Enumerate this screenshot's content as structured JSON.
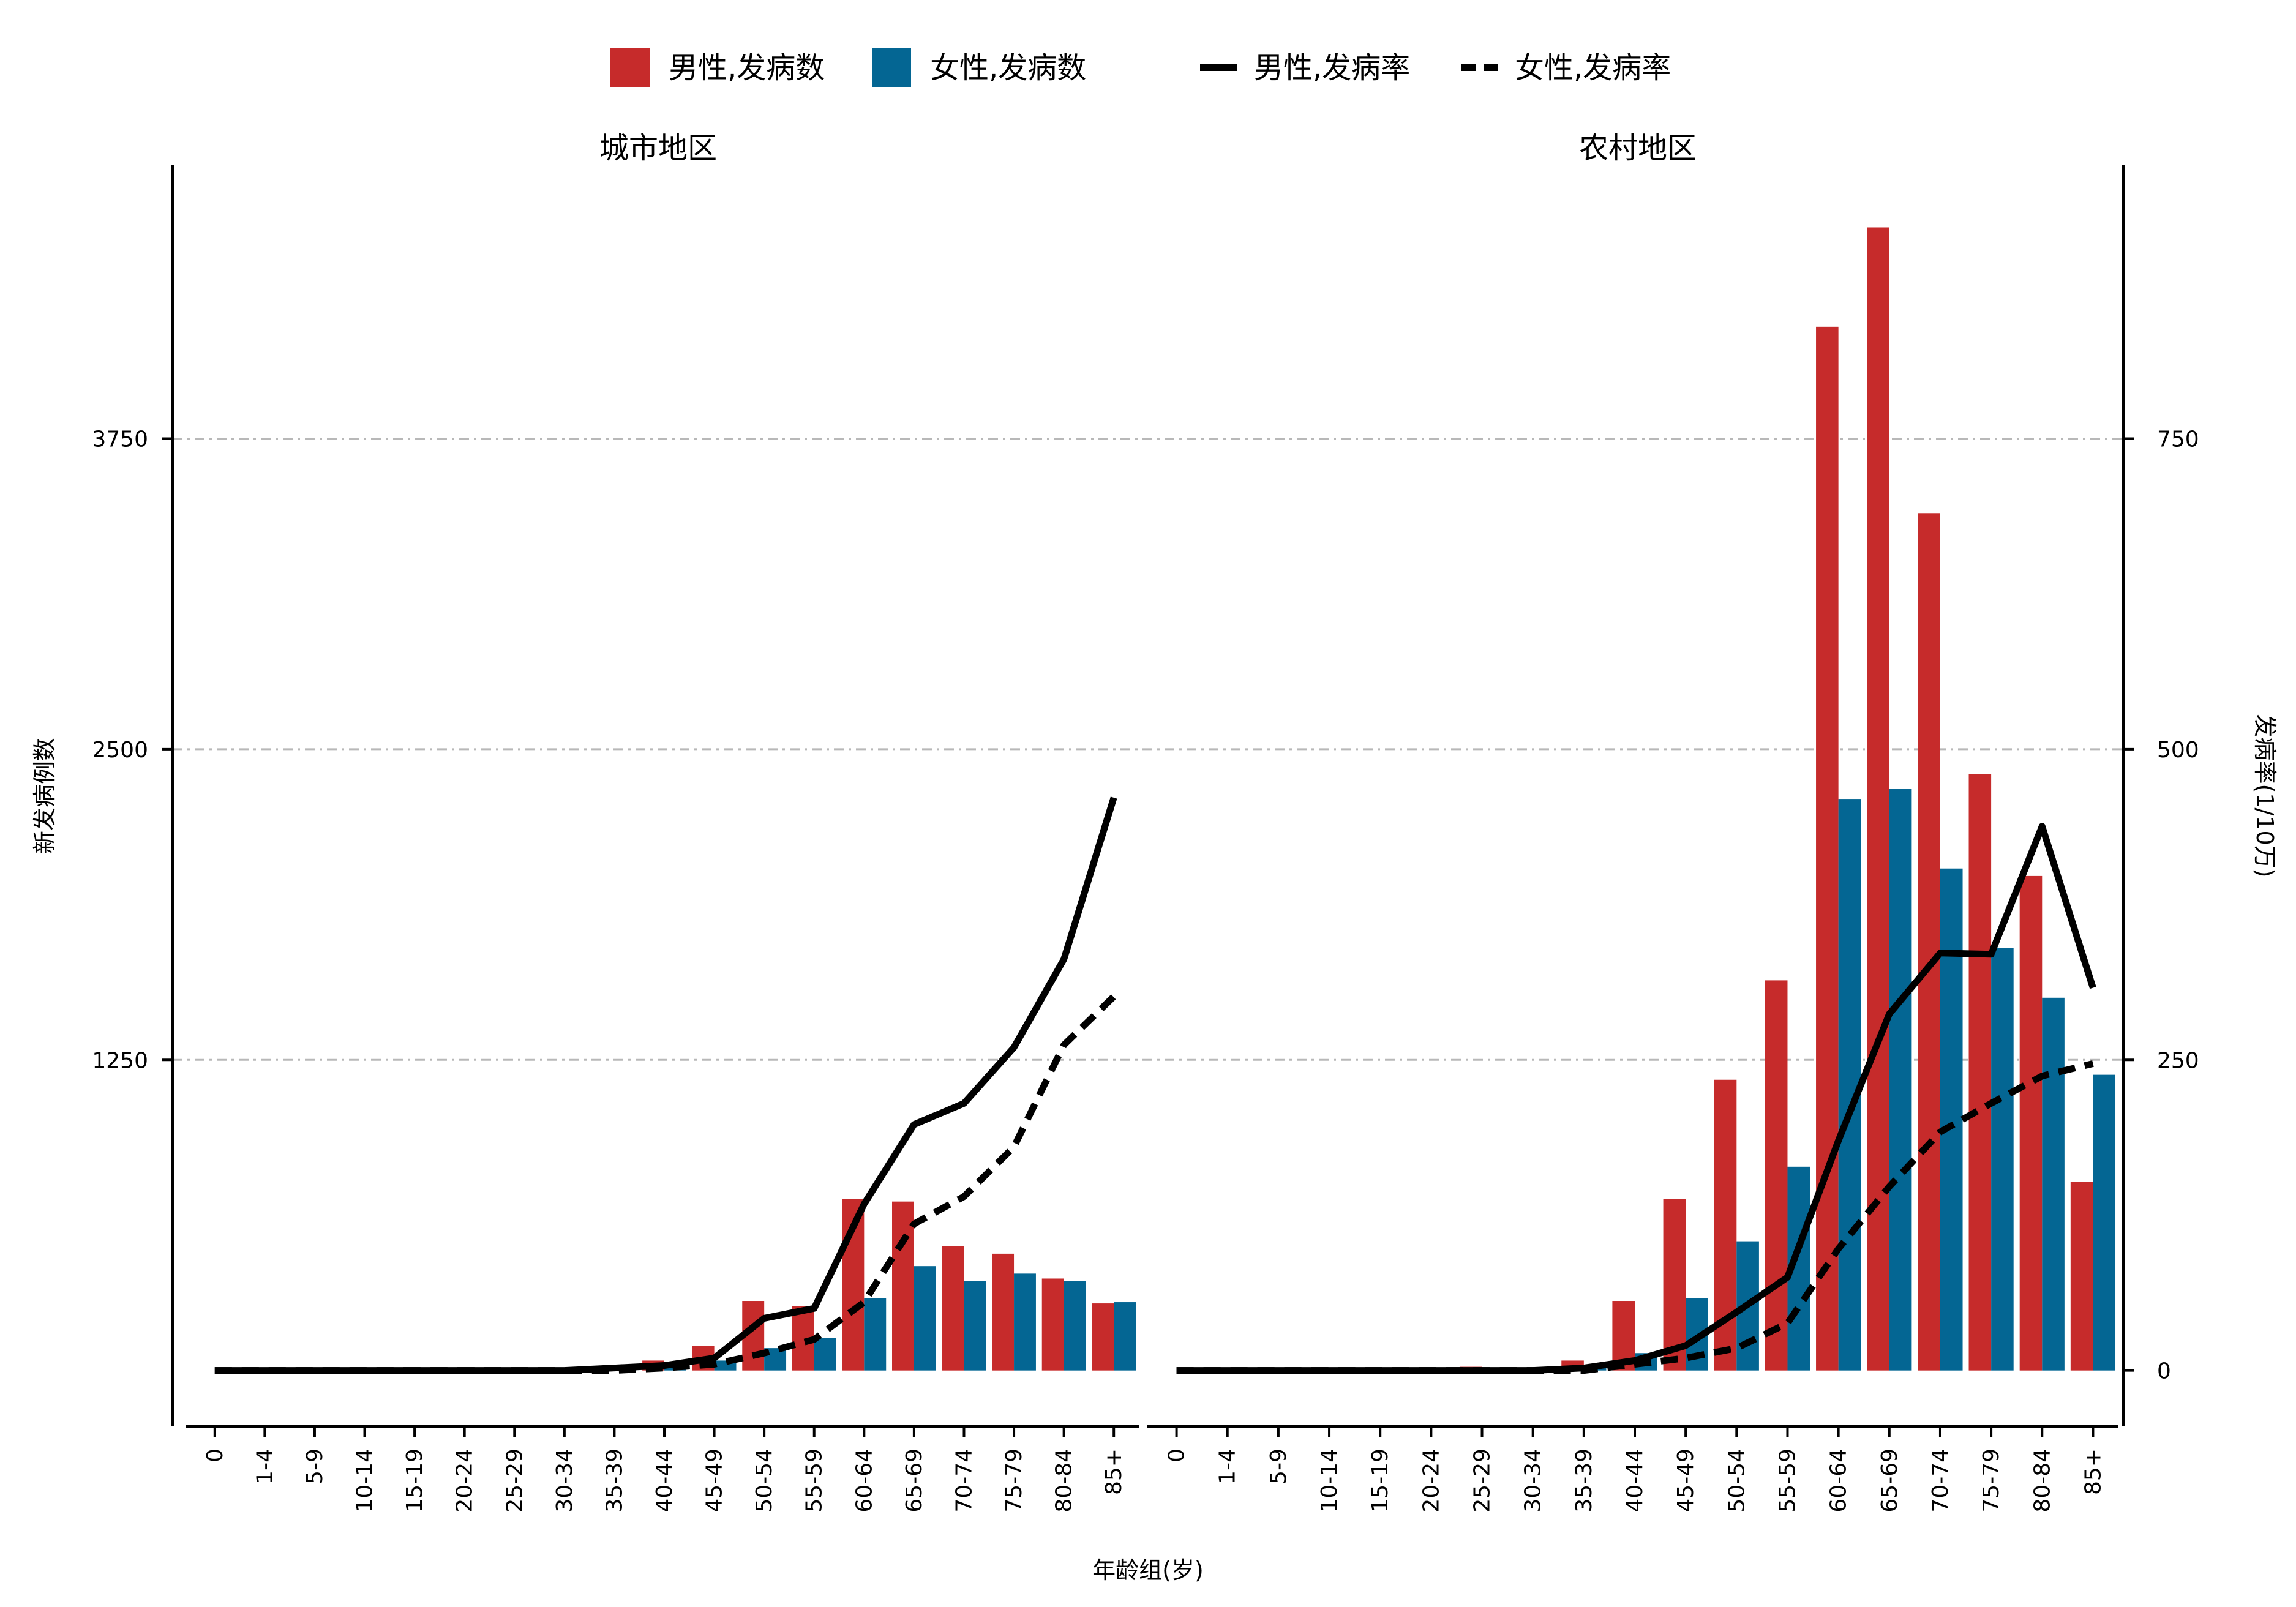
{
  "colors": {
    "male_bar": "#c62b2b",
    "female_bar": "#046693",
    "rate_line": "#000000",
    "grid": "#b8b8b8"
  },
  "legend": {
    "male_count": "男性,发病数",
    "female_count": "女性,发病数",
    "male_rate": "男性,发病率",
    "female_rate": "女性,发病率"
  },
  "axes": {
    "left_title": "新发病例数",
    "right_title": "发病率(1/10万)",
    "x_title": "年龄组(岁)"
  },
  "chart_data": {
    "type": "bar",
    "categories": [
      "0",
      "1-4",
      "5-9",
      "10-14",
      "15-19",
      "20-24",
      "25-29",
      "30-34",
      "35-39",
      "40-44",
      "45-49",
      "50-54",
      "55-59",
      "60-64",
      "65-69",
      "70-74",
      "75-79",
      "80-84",
      "85+"
    ],
    "left_axis": {
      "ylim": [
        -225,
        4850
      ],
      "ticks": [
        1250,
        2500,
        3750
      ],
      "tick_labels": [
        "1250",
        "2500",
        "3750"
      ]
    },
    "right_axis": {
      "ylim": [
        -45,
        970
      ],
      "ticks": [
        0,
        250,
        500,
        750
      ],
      "tick_labels": [
        "0",
        "250",
        "500",
        "750"
      ]
    },
    "grid": "horizontal dashed",
    "legend_position": "top",
    "panels": [
      {
        "title": "城市地区",
        "male_count": [
          0,
          0,
          0,
          0,
          0,
          0,
          0,
          0,
          10,
          40,
          100,
          280,
          260,
          690,
          680,
          500,
          470,
          370,
          270
        ],
        "female_count": [
          0,
          0,
          0,
          0,
          0,
          0,
          0,
          0,
          5,
          25,
          40,
          90,
          130,
          290,
          420,
          360,
          390,
          360,
          275
        ],
        "male_rate": [
          0,
          0,
          0,
          0,
          0,
          0,
          0,
          0,
          2,
          4,
          10,
          42,
          50,
          134,
          198,
          215,
          260,
          331,
          461
        ],
        "female_rate": [
          0,
          0,
          0,
          0,
          0,
          0,
          0,
          0,
          0,
          2,
          5,
          14,
          25,
          55,
          118,
          140,
          180,
          262,
          301
        ]
      },
      {
        "title": "农村地区",
        "male_count": [
          0,
          0,
          0,
          0,
          0,
          0,
          15,
          10,
          40,
          280,
          690,
          1170,
          1570,
          4200,
          4600,
          3450,
          2400,
          1990,
          760
        ],
        "female_count": [
          0,
          0,
          0,
          0,
          0,
          0,
          10,
          5,
          20,
          70,
          290,
          520,
          820,
          2300,
          2340,
          2020,
          1700,
          1500,
          1190
        ],
        "male_rate": [
          0,
          0,
          0,
          0,
          0,
          0,
          0,
          0,
          2,
          8,
          20,
          47,
          75,
          185,
          287,
          336,
          335,
          438,
          308
        ],
        "female_rate": [
          0,
          0,
          0,
          0,
          0,
          0,
          0,
          0,
          0,
          5,
          10,
          18,
          38,
          98,
          148,
          192,
          215,
          237,
          247
        ]
      }
    ]
  }
}
